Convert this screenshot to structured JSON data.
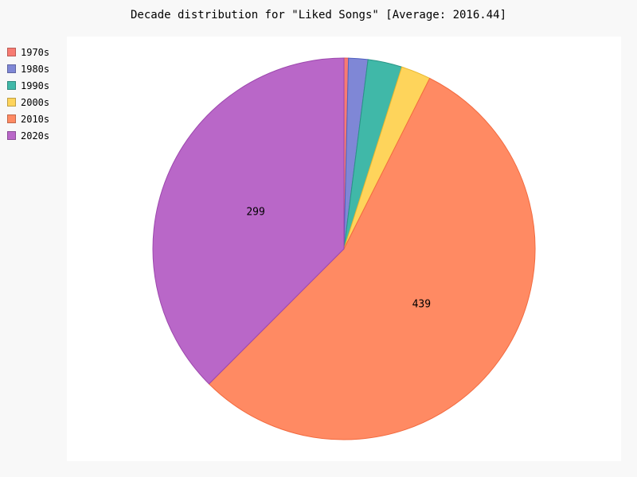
{
  "chart_data": {
    "type": "pie",
    "title": "Decade distribution for \"Liked Songs\" [Average: 2016.44]",
    "categories": [
      "1970s",
      "1980s",
      "1990s",
      "2000s",
      "2010s",
      "2020s"
    ],
    "values": [
      3,
      13,
      23,
      20,
      439,
      299
    ],
    "data_labels": [
      "",
      "",
      "",
      "",
      "439",
      "299"
    ],
    "colors": [
      "#f77b72",
      "#7f87d6",
      "#40b8a8",
      "#fed45b",
      "#ff8a63",
      "#b967c8"
    ],
    "stroke_colors": [
      "#e2574c",
      "#5060c0",
      "#2a9486",
      "#e8b830",
      "#f26a3f",
      "#9c47ad"
    ],
    "legend_position": "top-left",
    "start_angle_deg": 0,
    "direction": "clockwise"
  }
}
